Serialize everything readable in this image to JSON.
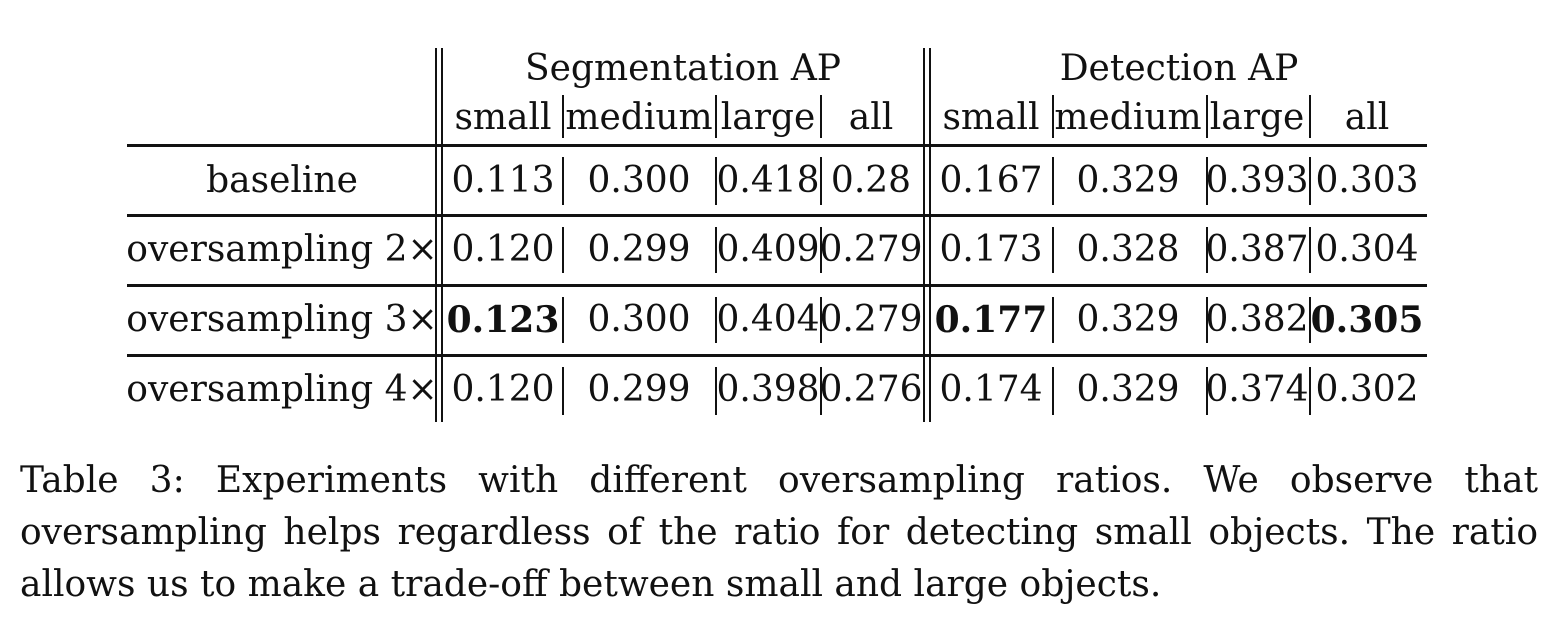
{
  "table": {
    "groups": [
      "Segmentation AP",
      "Detection AP"
    ],
    "subheaders": [
      "small",
      "medium",
      "large",
      "all",
      "small",
      "medium",
      "large",
      "all"
    ],
    "rows": [
      {
        "label": "baseline",
        "values": [
          "0.113",
          "0.300",
          "0.418",
          "0.28",
          "0.167",
          "0.329",
          "0.393",
          "0.303"
        ],
        "bold": []
      },
      {
        "label": "oversampling 2×",
        "values": [
          "0.120",
          "0.299",
          "0.409",
          "0.279",
          "0.173",
          "0.328",
          "0.387",
          "0.304"
        ],
        "bold": []
      },
      {
        "label": "oversampling 3×",
        "values": [
          "0.123",
          "0.300",
          "0.404",
          "0.279",
          "0.177",
          "0.329",
          "0.382",
          "0.305"
        ],
        "bold": [
          0,
          4,
          7
        ]
      },
      {
        "label": "oversampling 4×",
        "values": [
          "0.120",
          "0.299",
          "0.398",
          "0.276",
          "0.174",
          "0.329",
          "0.374",
          "0.302"
        ],
        "bold": []
      }
    ]
  },
  "caption": "Table 3: Experiments with different oversampling ratios. We observe that oversampling helps regardless of the ratio for detecting small objects. The ratio allows us to make a trade-off between small and large objects."
}
